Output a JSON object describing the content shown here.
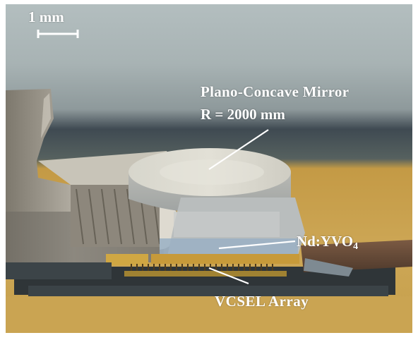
{
  "figure": {
    "scale_bar": {
      "label": "1 mm"
    },
    "annotations": {
      "mirror_line1": "Plano-Concave Mirror",
      "mirror_line2": "R = 2000 mm",
      "crystal_main": "Nd:YVO",
      "crystal_subscript": "4",
      "vcsel": "VCSEL Array"
    }
  },
  "colors": {
    "label_text": "#ffffff",
    "background_gold": "#caa348",
    "metal_mount": "#a9a497",
    "mirror_glass": "#d9d8cf"
  }
}
